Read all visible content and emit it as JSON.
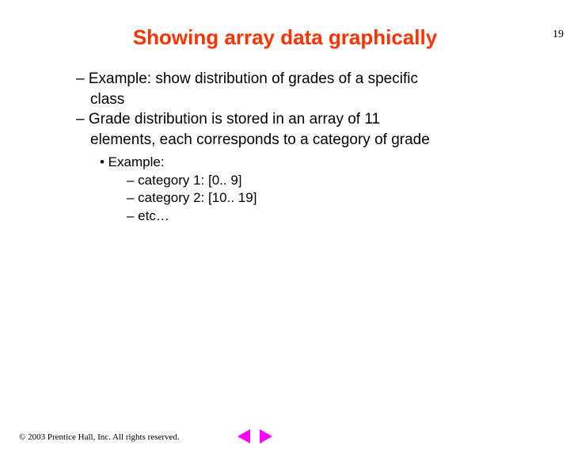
{
  "page_number": "19",
  "title": "Showing array data graphically",
  "bullets": {
    "l1_1": "– Example: show distribution of grades of a specific",
    "l1_1_cont": "class",
    "l1_2": "– Grade distribution is stored in an array of 11",
    "l1_2_cont": "elements, each corresponds to a category of grade",
    "l2_1": "• Example:",
    "l3_1": "– category 1: [0.. 9]",
    "l3_2": "– category 2: [10.. 19]",
    "l3_3": "– etc…"
  },
  "footer": {
    "copyright": "© 2003 Prentice Hall, Inc. All rights reserved."
  },
  "colors": {
    "title_color": "#ff3300",
    "text_color": "#000000",
    "nav_icon_color": "#ff00ff",
    "background": "#ffffff"
  },
  "fonts": {
    "title_family": "Comic Sans MS",
    "body_family": "Comic Sans MS",
    "footer_family": "Times New Roman",
    "title_size": 26,
    "body_size": 19,
    "sub_size": 17,
    "footer_size": 11
  }
}
